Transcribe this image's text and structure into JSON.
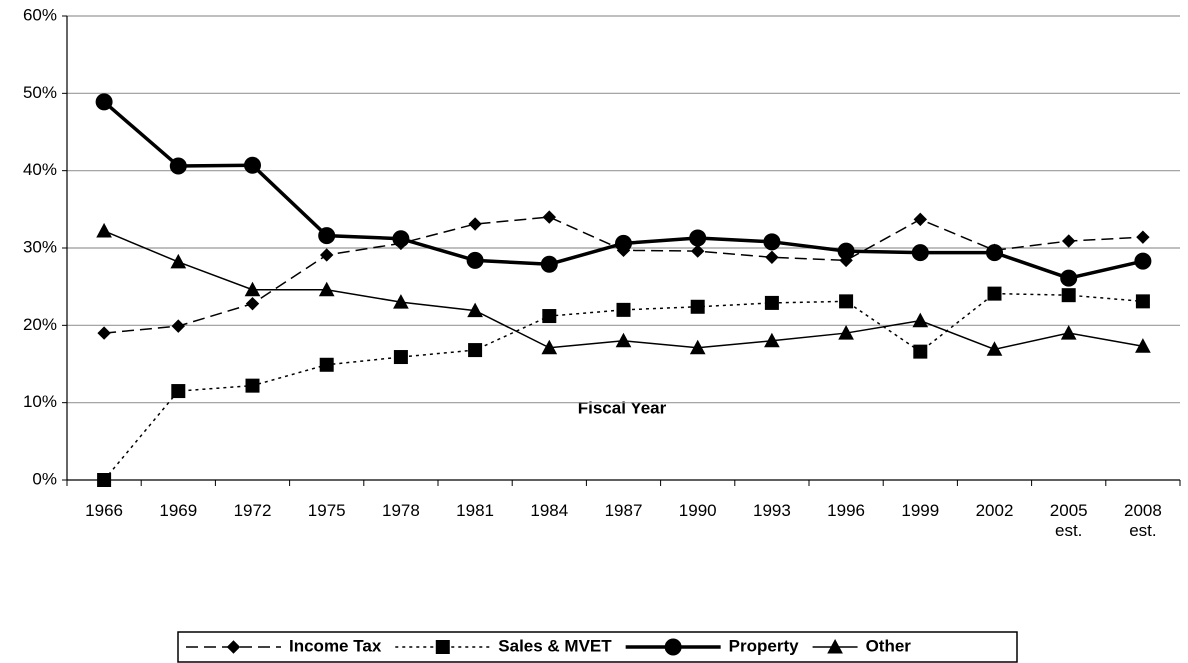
{
  "chart_data": {
    "type": "line",
    "x_label": "Fiscal Year",
    "categories": [
      "1966",
      "1969",
      "1972",
      "1975",
      "1978",
      "1981",
      "1984",
      "1987",
      "1990",
      "1993",
      "1996",
      "1999",
      "2002",
      "2005\nest.",
      "2008\nest."
    ],
    "ylim": [
      0,
      60
    ],
    "yticks": [
      {
        "value": 0,
        "label": "0%"
      },
      {
        "value": 10,
        "label": "10%"
      },
      {
        "value": 20,
        "label": "20%"
      },
      {
        "value": 30,
        "label": "30%"
      },
      {
        "value": 40,
        "label": "40%"
      },
      {
        "value": 50,
        "label": "50%"
      },
      {
        "value": 60,
        "label": "60%"
      }
    ],
    "grid": true,
    "legend": "bottom",
    "series": [
      {
        "name": "Income Tax",
        "color": "#000000",
        "marker": "diamond",
        "dash": "dashed",
        "line_width": 1.5,
        "values": [
          19.0,
          19.9,
          22.8,
          29.1,
          30.6,
          33.1,
          34.0,
          29.7,
          29.6,
          28.8,
          28.4,
          33.7,
          29.7,
          30.9,
          31.4
        ]
      },
      {
        "name": "Sales & MVET",
        "color": "#000000",
        "marker": "square",
        "dash": "dotted",
        "line_width": 1.5,
        "values": [
          0,
          11.5,
          12.2,
          14.9,
          15.9,
          16.8,
          21.2,
          22.0,
          22.4,
          22.9,
          23.1,
          16.6,
          24.1,
          23.9,
          23.1
        ]
      },
      {
        "name": "Property",
        "color": "#000000",
        "marker": "circle",
        "dash": "solid",
        "line_width": 3.5,
        "values": [
          48.9,
          40.6,
          40.7,
          31.6,
          31.2,
          28.4,
          27.9,
          30.6,
          31.3,
          30.8,
          29.6,
          29.4,
          29.4,
          26.1,
          28.3
        ]
      },
      {
        "name": "Other",
        "color": "#000000",
        "marker": "triangle",
        "dash": "solid",
        "line_width": 1.5,
        "values": [
          32.2,
          28.2,
          24.6,
          24.6,
          23.0,
          21.9,
          17.1,
          18.0,
          17.1,
          18.0,
          19.0,
          20.6,
          16.9,
          19.0,
          17.3
        ]
      }
    ]
  }
}
